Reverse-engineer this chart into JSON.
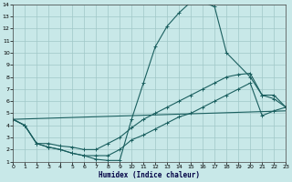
{
  "xlabel": "Humidex (Indice chaleur)",
  "bg_color": "#c8e8e8",
  "grid_color": "#a0c8c8",
  "line_color": "#1a5f5f",
  "xlim": [
    0,
    23
  ],
  "ylim": [
    1,
    14
  ],
  "xtick_labels": [
    "0",
    "1",
    "2",
    "3",
    "4",
    "5",
    "6",
    "7",
    "8",
    "9",
    "10",
    "11",
    "12",
    "13",
    "14",
    "15",
    "16",
    "17",
    "18",
    "19",
    "20",
    "21",
    "22",
    "23"
  ],
  "ytick_labels": [
    "1",
    "2",
    "3",
    "4",
    "5",
    "6",
    "7",
    "8",
    "9",
    "10",
    "11",
    "12",
    "13",
    "14"
  ],
  "series": [
    {
      "x": [
        0,
        1,
        2,
        3,
        4,
        5,
        6,
        7,
        8,
        9,
        10,
        11,
        12,
        13,
        14,
        15,
        16,
        17,
        18,
        20,
        21,
        22,
        23
      ],
      "y": [
        4.5,
        4.0,
        2.5,
        2.2,
        2.0,
        1.7,
        1.5,
        1.2,
        1.1,
        1.1,
        4.5,
        7.5,
        10.5,
        12.2,
        13.3,
        14.2,
        14.2,
        13.8,
        10.0,
        8.0,
        6.5,
        6.5,
        5.5
      ]
    },
    {
      "x": [
        0,
        1,
        2,
        3,
        4,
        5,
        6,
        7,
        8,
        9,
        10,
        11,
        12,
        13,
        14,
        15,
        16,
        17,
        18,
        19,
        20,
        21,
        22,
        23
      ],
      "y": [
        4.5,
        4.0,
        2.5,
        2.5,
        2.3,
        2.2,
        2.0,
        2.0,
        2.5,
        3.0,
        3.8,
        4.5,
        5.0,
        5.5,
        6.0,
        6.5,
        7.0,
        7.5,
        8.0,
        8.2,
        8.3,
        6.5,
        6.2,
        5.5
      ]
    },
    {
      "x": [
        0,
        23
      ],
      "y": [
        4.5,
        5.2
      ]
    },
    {
      "x": [
        0,
        1,
        2,
        3,
        4,
        5,
        6,
        7,
        8,
        9,
        10,
        11,
        12,
        13,
        14,
        15,
        16,
        17,
        18,
        19,
        20,
        21,
        22,
        23
      ],
      "y": [
        4.5,
        4.0,
        2.5,
        2.2,
        2.0,
        1.7,
        1.5,
        1.5,
        1.5,
        2.0,
        2.8,
        3.2,
        3.7,
        4.2,
        4.7,
        5.0,
        5.5,
        6.0,
        6.5,
        7.0,
        7.5,
        4.8,
        5.2,
        5.5
      ]
    }
  ]
}
